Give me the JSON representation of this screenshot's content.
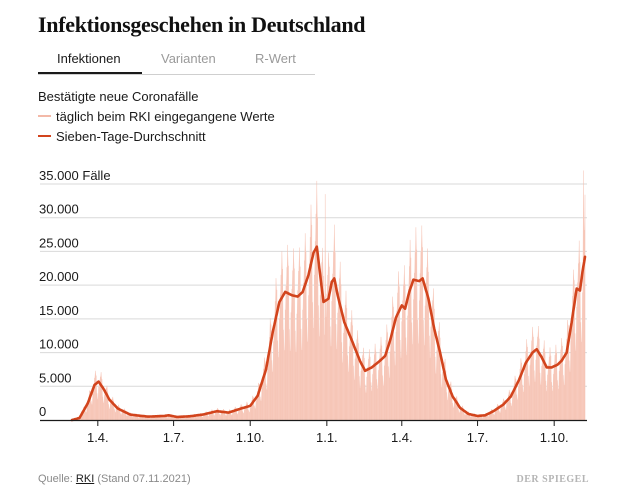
{
  "header": {
    "title": "Infektionsgeschehen in Deutschland"
  },
  "tabs": [
    {
      "label": "Infektionen",
      "active": true
    },
    {
      "label": "Varianten",
      "active": false
    },
    {
      "label": "R-Wert",
      "active": false
    }
  ],
  "legend": {
    "title": "Bestätigte neue Coronafälle",
    "daily_label": "täglich beim RKI eingegangene Werte",
    "avg_label": "Sieben-Tage-Durchschnitt"
  },
  "colors": {
    "daily": "#f3b9a8",
    "area": "#fbd9cf",
    "avg": "#d2441d",
    "grid": "#d9d9d9",
    "axis": "#1a1a1a"
  },
  "footer": {
    "source_prefix": "Quelle: ",
    "source_link": "RKI",
    "source_suffix": " (Stand 07.11.2021)",
    "brand": "DER SPIEGEL"
  },
  "chart_data": {
    "type": "area",
    "title": "Bestätigte neue Coronafälle",
    "xlabel": "",
    "ylabel": "",
    "unit_label": "Fälle",
    "ylim": [
      0,
      35000
    ],
    "yticks": [
      0,
      5000,
      10000,
      15000,
      20000,
      25000,
      30000,
      35000
    ],
    "ytick_labels": [
      "0",
      "5.000",
      "10.000",
      "15.000",
      "20.000",
      "25.000",
      "30.000",
      "35.000 Fälle"
    ],
    "x_range": [
      "2020-03-01",
      "2021-11-07"
    ],
    "xtick_labels": [
      "1.4.",
      "1.7.",
      "1.10.",
      "1.1.",
      "1.4.",
      "1.7.",
      "1.10."
    ],
    "xtick_dates": [
      "2020-04-01",
      "2020-07-01",
      "2020-10-01",
      "2021-01-01",
      "2021-04-01",
      "2021-07-01",
      "2021-10-01"
    ],
    "series": [
      {
        "name": "Sieben-Tage-Durchschnitt",
        "points": [
          [
            "2020-03-01",
            0
          ],
          [
            "2020-03-10",
            300
          ],
          [
            "2020-03-20",
            2500
          ],
          [
            "2020-03-28",
            5200
          ],
          [
            "2020-04-02",
            5700
          ],
          [
            "2020-04-08",
            4600
          ],
          [
            "2020-04-15",
            3000
          ],
          [
            "2020-04-25",
            1700
          ],
          [
            "2020-05-10",
            800
          ],
          [
            "2020-05-31",
            500
          ],
          [
            "2020-06-20",
            600
          ],
          [
            "2020-06-25",
            700
          ],
          [
            "2020-07-05",
            450
          ],
          [
            "2020-07-20",
            550
          ],
          [
            "2020-08-05",
            800
          ],
          [
            "2020-08-22",
            1300
          ],
          [
            "2020-09-05",
            1100
          ],
          [
            "2020-09-20",
            1700
          ],
          [
            "2020-10-01",
            2100
          ],
          [
            "2020-10-10",
            3600
          ],
          [
            "2020-10-20",
            7500
          ],
          [
            "2020-10-28",
            13000
          ],
          [
            "2020-11-05",
            17500
          ],
          [
            "2020-11-12",
            19000
          ],
          [
            "2020-11-20",
            18500
          ],
          [
            "2020-11-27",
            18300
          ],
          [
            "2020-12-03",
            19000
          ],
          [
            "2020-12-10",
            21500
          ],
          [
            "2020-12-16",
            24800
          ],
          [
            "2020-12-20",
            25700
          ],
          [
            "2020-12-24",
            21500
          ],
          [
            "2020-12-28",
            17500
          ],
          [
            "2021-01-03",
            18000
          ],
          [
            "2021-01-07",
            20500
          ],
          [
            "2021-01-10",
            21000
          ],
          [
            "2021-01-14",
            18500
          ],
          [
            "2021-01-22",
            14500
          ],
          [
            "2021-02-01",
            11500
          ],
          [
            "2021-02-10",
            8700
          ],
          [
            "2021-02-16",
            7300
          ],
          [
            "2021-02-24",
            7800
          ],
          [
            "2021-03-05",
            8700
          ],
          [
            "2021-03-12",
            9500
          ],
          [
            "2021-03-18",
            11800
          ],
          [
            "2021-03-25",
            15200
          ],
          [
            "2021-04-01",
            17000
          ],
          [
            "2021-04-05",
            16500
          ],
          [
            "2021-04-10",
            19000
          ],
          [
            "2021-04-15",
            20800
          ],
          [
            "2021-04-22",
            20600
          ],
          [
            "2021-04-26",
            21000
          ],
          [
            "2021-05-03",
            18000
          ],
          [
            "2021-05-10",
            13500
          ],
          [
            "2021-05-17",
            10000
          ],
          [
            "2021-05-24",
            6000
          ],
          [
            "2021-06-01",
            3500
          ],
          [
            "2021-06-10",
            1800
          ],
          [
            "2021-06-20",
            900
          ],
          [
            "2021-07-01",
            600
          ],
          [
            "2021-07-10",
            700
          ],
          [
            "2021-07-20",
            1300
          ],
          [
            "2021-08-01",
            2300
          ],
          [
            "2021-08-10",
            3500
          ],
          [
            "2021-08-20",
            6000
          ],
          [
            "2021-08-28",
            8500
          ],
          [
            "2021-09-05",
            10000
          ],
          [
            "2021-09-10",
            10500
          ],
          [
            "2021-09-16",
            9300
          ],
          [
            "2021-09-22",
            7800
          ],
          [
            "2021-09-28",
            7800
          ],
          [
            "2021-10-05",
            8200
          ],
          [
            "2021-10-10",
            8800
          ],
          [
            "2021-10-16",
            10000
          ],
          [
            "2021-10-22",
            14500
          ],
          [
            "2021-10-28",
            19500
          ],
          [
            "2021-11-01",
            19200
          ],
          [
            "2021-11-04",
            22000
          ],
          [
            "2021-11-07",
            24200
          ]
        ]
      },
      {
        "name": "täglich beim RKI eingegangene Werte",
        "style": "weekly oscillation around the seven-day average",
        "weekly_peak_factor": 1.38,
        "weekly_trough_factor": 0.55,
        "notable_peaks": [
          [
            "2020-12-30",
            33500
          ],
          [
            "2021-11-05",
            37000
          ]
        ]
      }
    ]
  }
}
